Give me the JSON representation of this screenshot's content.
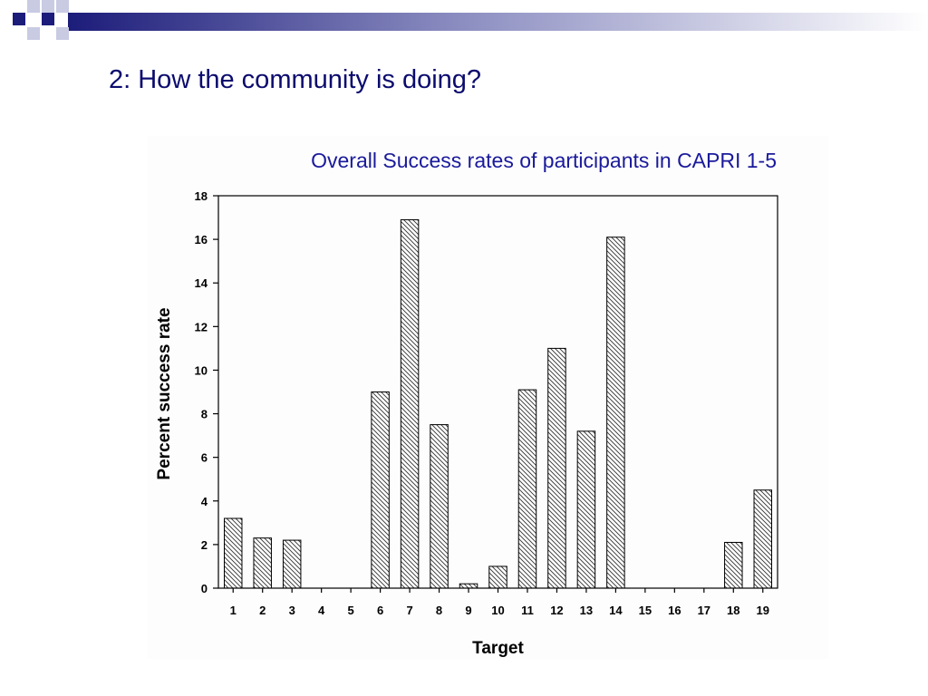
{
  "slide": {
    "title": "2: How the community is doing?"
  },
  "theme": {
    "title_color": "#0b0b6e",
    "chart_title_color": "#1a1a9c",
    "header_dark": "#1c1c7a",
    "header_light": "#c9cbe3"
  },
  "chart_data": {
    "type": "bar",
    "title": "Overall Success rates of participants in CAPRI 1-5",
    "xlabel": "Target",
    "ylabel": "Percent success rate",
    "ylim": [
      0,
      18
    ],
    "yticks": [
      0,
      2,
      4,
      6,
      8,
      10,
      12,
      14,
      16,
      18
    ],
    "categories": [
      "1",
      "2",
      "3",
      "4",
      "5",
      "6",
      "7",
      "8",
      "9",
      "10",
      "11",
      "12",
      "13",
      "14",
      "15",
      "16",
      "17",
      "18",
      "19"
    ],
    "values": [
      3.2,
      2.3,
      2.2,
      0,
      0,
      9.0,
      16.9,
      7.5,
      0.2,
      1.0,
      9.1,
      11.0,
      7.2,
      16.1,
      0,
      0,
      0,
      2.1,
      4.5
    ],
    "bar_fill": "hatched",
    "grid": false,
    "legend": "none"
  }
}
